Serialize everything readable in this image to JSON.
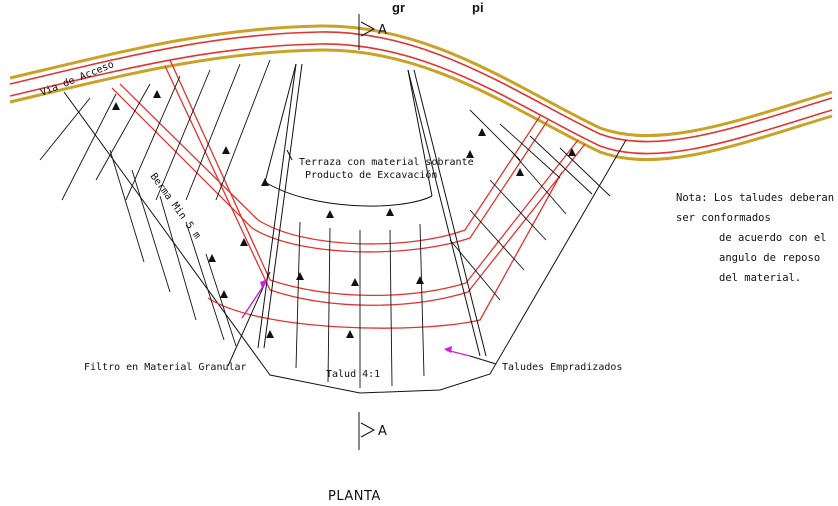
{
  "title_partial": "gr",
  "title_partial2": "pi",
  "section_top": "A",
  "section_bottom": "A",
  "road_label": "Via de Acceso",
  "berm_label": "Berma Min 5 m",
  "terrace_label_1": "Terraza con material sobrante",
  "terrace_label_2": "Producto de Excavación",
  "slope_label": "Talud 4:1",
  "filter_label": "Filtro en Material Granular",
  "grass_label": "Taludes Empradizados",
  "note_line1": "Nota: Los taludes deberan ser conformados",
  "note_line2": "de acuerdo con el angulo de reposo",
  "note_line3": "del material.",
  "view_label": "PLANTA",
  "colors": {
    "road": "#e3342f",
    "gold": "#c9a227",
    "arrow": "#d020d8",
    "ink": "#111111"
  }
}
